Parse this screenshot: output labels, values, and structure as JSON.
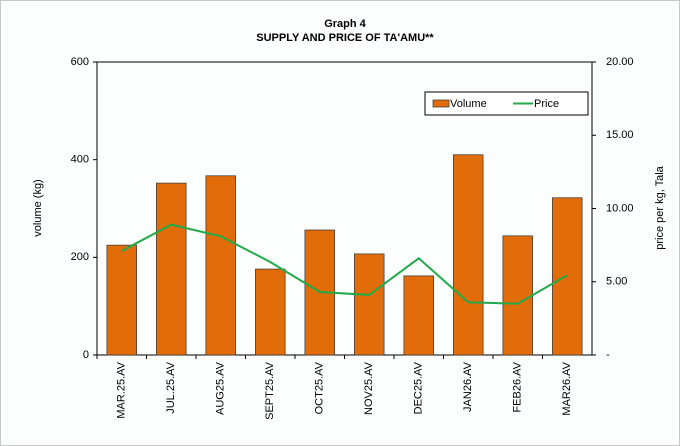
{
  "chart_data": {
    "type": "bar-line",
    "title": "Graph 4",
    "subtitle": "SUPPLY AND PRICE OF TA'AMU**",
    "y_label": "volume (kg)",
    "y2_label": "price per kg, Tala",
    "categories": [
      "MAR.25.AV",
      "JUL.25.AV",
      "AUG25.AV",
      "SEPT25.AV",
      "OCT25.AV",
      "NOV25.AV",
      "DEC25.AV",
      "JAN26.AV",
      "FEB26.AV",
      "MAR26.AV"
    ],
    "series": [
      {
        "name": "Volume",
        "type": "bar",
        "color": "#e36c0a",
        "values": [
          225,
          352,
          367,
          176,
          256,
          207,
          162,
          410,
          244,
          322
        ]
      },
      {
        "name": "Price",
        "type": "line",
        "axis": "y2",
        "color": "#22a94a",
        "values": [
          7.1,
          8.9,
          8.1,
          6.35,
          4.3,
          4.1,
          6.6,
          3.6,
          3.5,
          5.45
        ]
      }
    ],
    "ylim": [
      0,
      600
    ],
    "yticks": [
      0,
      200,
      400,
      600
    ],
    "y2lim": [
      0,
      20
    ],
    "y2ticks": [
      {
        "value": 0,
        "label": "-"
      },
      {
        "value": 5,
        "label": "5.00"
      },
      {
        "value": 10,
        "label": "10.00"
      },
      {
        "value": 15,
        "label": "15.00"
      },
      {
        "value": 20,
        "label": "20.00"
      }
    ],
    "legend": "top-right"
  }
}
